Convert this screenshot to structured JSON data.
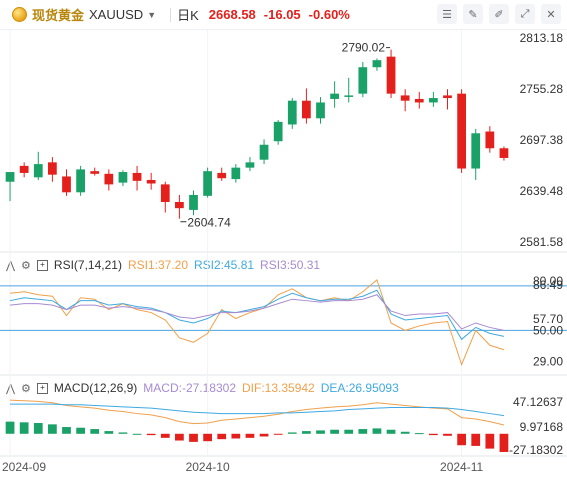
{
  "header": {
    "instrument_name": "现货黄金",
    "symbol": "XAUUSD",
    "period": "日K",
    "last_price": "2668.58",
    "change": "-16.05",
    "change_pct": "-0.60%"
  },
  "toolbar": {
    "icons": [
      "settings-sliders-icon",
      "edit-pen-icon",
      "drawing-tools-icon",
      "fullscreen-icon",
      "close-icon"
    ]
  },
  "colors": {
    "up": "#1aa167",
    "down": "#e3201c",
    "rsi1": "#f0a04b",
    "rsi2": "#3fa9e0",
    "rsi3": "#a78bd1",
    "macd_dif": "#f0a04b",
    "macd_dea": "#3fa9e0",
    "level_line": "#4aa3df"
  },
  "main_chart": {
    "price_labels": [
      "2813.18",
      "2755.28",
      "2697.38",
      "2639.48",
      "2581.58"
    ],
    "price_range": [
      2581.58,
      2813.18
    ],
    "high_annotation": "2790.02",
    "low_annotation": "2604.74",
    "candles": [
      {
        "o": 2650,
        "h": 2660,
        "l": 2628,
        "c": 2661
      },
      {
        "o": 2668,
        "h": 2672,
        "l": 2655,
        "c": 2660
      },
      {
        "o": 2655,
        "h": 2684,
        "l": 2652,
        "c": 2670
      },
      {
        "o": 2672,
        "h": 2678,
        "l": 2650,
        "c": 2658
      },
      {
        "o": 2656,
        "h": 2664,
        "l": 2634,
        "c": 2638
      },
      {
        "o": 2638,
        "h": 2668,
        "l": 2634,
        "c": 2664
      },
      {
        "o": 2662,
        "h": 2666,
        "l": 2657,
        "c": 2659
      },
      {
        "o": 2659,
        "h": 2664,
        "l": 2640,
        "c": 2647
      },
      {
        "o": 2649,
        "h": 2663,
        "l": 2645,
        "c": 2661
      },
      {
        "o": 2660,
        "h": 2668,
        "l": 2640,
        "c": 2651
      },
      {
        "o": 2652,
        "h": 2660,
        "l": 2641,
        "c": 2648
      },
      {
        "o": 2647,
        "h": 2650,
        "l": 2615,
        "c": 2627
      },
      {
        "o": 2627,
        "h": 2635,
        "l": 2608,
        "c": 2620
      },
      {
        "o": 2618,
        "h": 2640,
        "l": 2612,
        "c": 2635
      },
      {
        "o": 2634,
        "h": 2666,
        "l": 2632,
        "c": 2662
      },
      {
        "o": 2660,
        "h": 2666,
        "l": 2651,
        "c": 2654
      },
      {
        "o": 2653,
        "h": 2670,
        "l": 2649,
        "c": 2666
      },
      {
        "o": 2666,
        "h": 2678,
        "l": 2662,
        "c": 2672
      },
      {
        "o": 2675,
        "h": 2698,
        "l": 2670,
        "c": 2692
      },
      {
        "o": 2696,
        "h": 2720,
        "l": 2692,
        "c": 2718
      },
      {
        "o": 2715,
        "h": 2745,
        "l": 2710,
        "c": 2742
      },
      {
        "o": 2742,
        "h": 2756,
        "l": 2716,
        "c": 2722
      },
      {
        "o": 2722,
        "h": 2746,
        "l": 2716,
        "c": 2740
      },
      {
        "o": 2744,
        "h": 2764,
        "l": 2734,
        "c": 2750
      },
      {
        "o": 2748,
        "h": 2768,
        "l": 2740,
        "c": 2748
      },
      {
        "o": 2750,
        "h": 2786,
        "l": 2746,
        "c": 2780
      },
      {
        "o": 2780,
        "h": 2790,
        "l": 2776,
        "c": 2788
      },
      {
        "o": 2792,
        "h": 2800,
        "l": 2745,
        "c": 2750
      },
      {
        "o": 2748,
        "h": 2755,
        "l": 2730,
        "c": 2742
      },
      {
        "o": 2744,
        "h": 2752,
        "l": 2733,
        "c": 2740
      },
      {
        "o": 2740,
        "h": 2752,
        "l": 2735,
        "c": 2745
      },
      {
        "o": 2748,
        "h": 2755,
        "l": 2732,
        "c": 2745
      },
      {
        "o": 2750,
        "h": 2755,
        "l": 2660,
        "c": 2665
      },
      {
        "o": 2665,
        "h": 2710,
        "l": 2652,
        "c": 2705
      },
      {
        "o": 2707,
        "h": 2713,
        "l": 2683,
        "c": 2688
      },
      {
        "o": 2688,
        "h": 2690,
        "l": 2674,
        "c": 2677
      }
    ]
  },
  "rsi": {
    "label": "RSI(7,14,21)",
    "rsi1": "RSI1:37.20",
    "rsi2": "RSI2:45.81",
    "rsi3": "RSI3:50.31",
    "axis_labels": [
      "80.00",
      "86.49",
      "57.70",
      "50.00",
      "29.00"
    ],
    "range": [
      22,
      92
    ],
    "level_lines": [
      80,
      50
    ],
    "rsi1_values": [
      75,
      76,
      74,
      73,
      60,
      72,
      71,
      64,
      68,
      64,
      62,
      57,
      45,
      42,
      48,
      64,
      58,
      62,
      65,
      74,
      78,
      72,
      70,
      72,
      70,
      76,
      84,
      55,
      50,
      53,
      55,
      56,
      27,
      50,
      40,
      37
    ],
    "rsi2_values": [
      70,
      72,
      71,
      70,
      64,
      70,
      70,
      67,
      68,
      66,
      65,
      62,
      57,
      55,
      58,
      63,
      62,
      64,
      66,
      71,
      75,
      72,
      70,
      71,
      71,
      73,
      77,
      61,
      57,
      58,
      59,
      60,
      44,
      52,
      48,
      46
    ],
    "rsi3_values": [
      67,
      68,
      68,
      67,
      64,
      67,
      67,
      65,
      66,
      65,
      64,
      62,
      59,
      58,
      60,
      62,
      62,
      63,
      65,
      68,
      71,
      70,
      69,
      70,
      70,
      71,
      74,
      63,
      60,
      61,
      61,
      62,
      51,
      55,
      52,
      50
    ]
  },
  "macd": {
    "label": "MACD(12,26,9)",
    "macd_value": "MACD:-27.18302",
    "dif_value": "DIF:13.35942",
    "dea_value": "DEA:26.95093",
    "axis_labels": [
      "47.12637",
      "9.97168",
      "-27.18302"
    ],
    "range": [
      -30,
      62
    ],
    "histogram": [
      18,
      17,
      16,
      14,
      10,
      9,
      7,
      4,
      2,
      0,
      -2,
      -6,
      -10,
      -12,
      -11,
      -8,
      -7,
      -6,
      -4,
      -1,
      2,
      4,
      5,
      6,
      6,
      7,
      8,
      6,
      3,
      1,
      -2,
      -3,
      -17,
      -18,
      -22,
      -27
    ],
    "dif_values": [
      50,
      49,
      48,
      46,
      42,
      40,
      38,
      35,
      33,
      30,
      28,
      24,
      18,
      15,
      16,
      20,
      22,
      24,
      26,
      29,
      33,
      36,
      38,
      40,
      41,
      43,
      46,
      44,
      42,
      40,
      38,
      37,
      24,
      22,
      18,
      13
    ],
    "dea_values": [
      44,
      44,
      44,
      44,
      43,
      43,
      42,
      41,
      40,
      39,
      38,
      36,
      34,
      32,
      31,
      30,
      30,
      30,
      30,
      31,
      31,
      32,
      33,
      34,
      36,
      37,
      38,
      39,
      39,
      39,
      39,
      38,
      36,
      33,
      30,
      27
    ]
  },
  "time_axis": {
    "labels": [
      "2024-09",
      "2024-10",
      "2024-11"
    ],
    "label_candle_index": [
      0,
      14,
      32
    ]
  }
}
